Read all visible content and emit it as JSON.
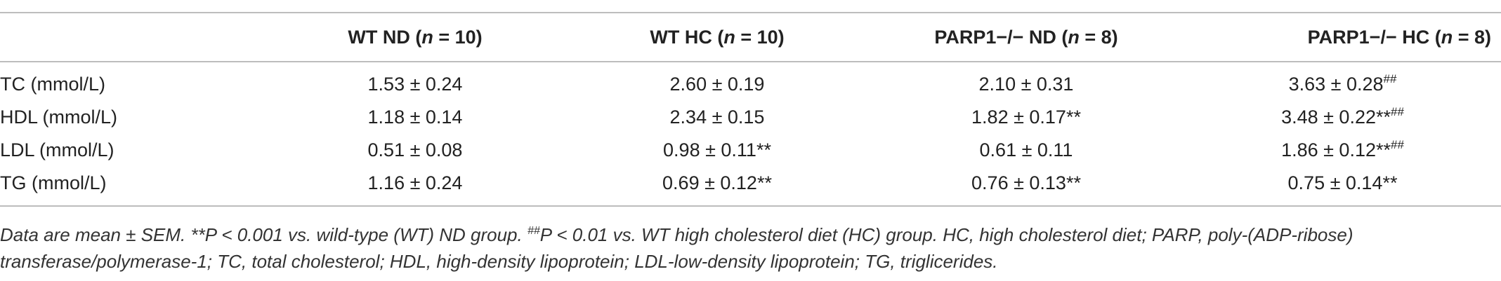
{
  "table": {
    "headers": [
      {
        "label": "",
        "italic_n": "",
        "suffix": ""
      },
      {
        "label": "WT ND (",
        "italic_n": "n",
        "suffix": " = 10)"
      },
      {
        "label": "WT HC (",
        "italic_n": "n",
        "suffix": " = 10)"
      },
      {
        "label": "PARP1−/− ND (",
        "italic_n": "n",
        "suffix": " = 8)"
      },
      {
        "label": "PARP1−/− HC (",
        "italic_n": "n",
        "suffix": " = 8)"
      }
    ],
    "rows": [
      {
        "label": "TC (mmol/L)",
        "cells": [
          {
            "value": "1.53 ± 0.24",
            "mark": ""
          },
          {
            "value": "2.60 ± 0.19",
            "mark": ""
          },
          {
            "value": "2.10 ± 0.31",
            "mark": ""
          },
          {
            "value": "3.63 ± 0.28",
            "mark": "##"
          }
        ]
      },
      {
        "label": "HDL (mmol/L)",
        "cells": [
          {
            "value": "1.18 ± 0.14",
            "mark": ""
          },
          {
            "value": "2.34 ± 0.15",
            "mark": ""
          },
          {
            "value": "1.82 ± 0.17**",
            "mark": ""
          },
          {
            "value": "3.48 ± 0.22**",
            "mark": "##"
          }
        ]
      },
      {
        "label": "LDL (mmol/L)",
        "cells": [
          {
            "value": "0.51 ± 0.08",
            "mark": ""
          },
          {
            "value": "0.98 ± 0.11**",
            "mark": ""
          },
          {
            "value": "0.61 ± 0.11",
            "mark": ""
          },
          {
            "value": "1.86 ± 0.12**",
            "mark": "##"
          }
        ]
      },
      {
        "label": "TG (mmol/L)",
        "cells": [
          {
            "value": "1.16 ± 0.24",
            "mark": ""
          },
          {
            "value": "0.69 ± 0.12**",
            "mark": ""
          },
          {
            "value": "0.76 ± 0.13**",
            "mark": ""
          },
          {
            "value": "0.75 ± 0.14**",
            "mark": ""
          }
        ]
      }
    ]
  },
  "caption": {
    "part1": "Data are mean ± SEM. **P < 0.001 vs. wild-type (WT) ND group. ",
    "mark": "##",
    "part2": "P < 0.01 vs. WT high cholesterol diet (HC) group. HC, high cholesterol diet; PARP, poly-(ADP-ribose) transferase/polymerase-1; TC, total cholesterol; HDL, high-density lipoprotein; LDL-low-density lipoprotein; TG, triglicerides."
  }
}
